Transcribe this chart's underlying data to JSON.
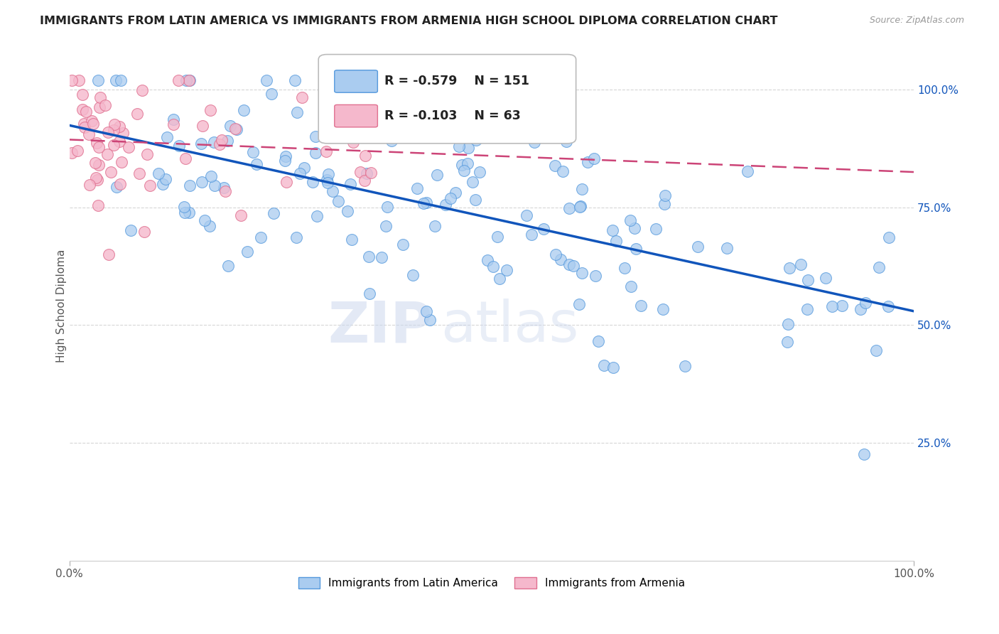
{
  "title": "IMMIGRANTS FROM LATIN AMERICA VS IMMIGRANTS FROM ARMENIA HIGH SCHOOL DIPLOMA CORRELATION CHART",
  "source": "Source: ZipAtlas.com",
  "ylabel": "High School Diploma",
  "blue_R": "-0.579",
  "blue_N": "151",
  "pink_R": "-0.103",
  "pink_N": "63",
  "blue_color": "#aaccf0",
  "blue_edge_color": "#5599dd",
  "blue_line_color": "#1155bb",
  "pink_color": "#f5b8cc",
  "pink_edge_color": "#e07090",
  "pink_line_color": "#cc4477",
  "watermark_zip": "ZIP",
  "watermark_atlas": "atlas",
  "ytick_labels": [
    "100.0%",
    "75.0%",
    "50.0%",
    "25.0%"
  ],
  "ytick_positions": [
    1.0,
    0.75,
    0.5,
    0.25
  ],
  "background_color": "#ffffff",
  "grid_color": "#cccccc",
  "title_fontsize": 11.5,
  "blue_seed": 42,
  "pink_seed": 99,
  "legend_label_blue": "Immigrants from Latin America",
  "legend_label_pink": "Immigrants from Armenia"
}
